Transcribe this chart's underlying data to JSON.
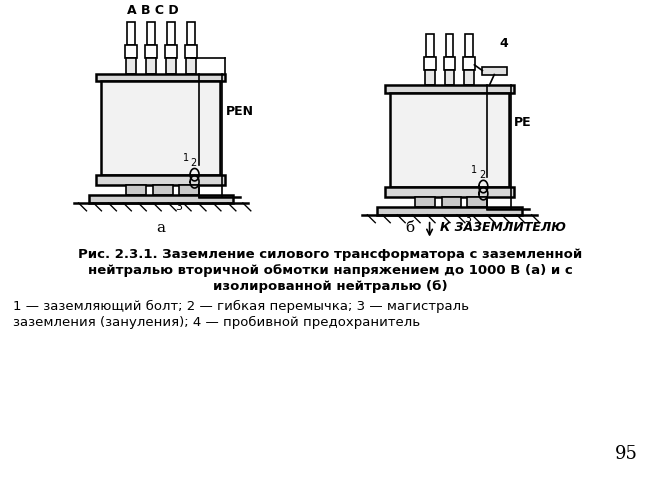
{
  "bg_color": "#ffffff",
  "title_lines": [
    "Рис. 2.3.1. Заземление силового трансформатора с заземленной",
    "нейтралью вторичной обмотки напряжением до 1000 В (а) и с",
    "изолированной нейтралью (б)"
  ],
  "legend_line1": "1 — заземляющий болт; 2 — гибкая перемычка; 3 — магистраль",
  "legend_line2": "заземления (зануления); 4 — пробивной предохранитель",
  "label_a": "а",
  "label_b": "б",
  "label_pen": "PEN",
  "label_pe": "PE",
  "label_abcd": "A B C D",
  "label_k_zazemlitelyu": "К ЗАЗЕМЛИТЕЛЮ",
  "label_4": "4",
  "page_number": "95",
  "lw": 1.2,
  "lw2": 1.8
}
